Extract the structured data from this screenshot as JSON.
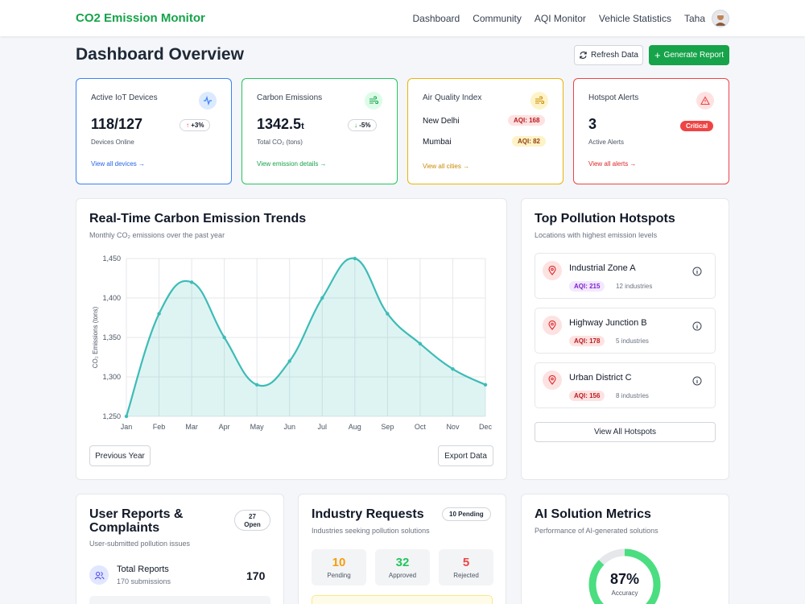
{
  "header": {
    "brand": "CO2 Emission Monitor",
    "nav": [
      "Dashboard",
      "Community",
      "AQI Monitor",
      "Vehicle Statistics"
    ],
    "user": "Taha"
  },
  "page": {
    "title": "Dashboard Overview",
    "refresh_label": "Refresh Data",
    "generate_label": "Generate Report"
  },
  "cards": {
    "devices": {
      "label": "Active IoT Devices",
      "value": "118/127",
      "change": "+3%",
      "sub": "Devices Online",
      "link": "View all devices →",
      "color": "#3b82f6"
    },
    "emissions": {
      "label": "Carbon Emissions",
      "value": "1342.5",
      "unit": "t",
      "change": "-5%",
      "sub": "Total CO₂ (tons)",
      "link": "View emission details →",
      "color": "#22c55e"
    },
    "aqi": {
      "label": "Air Quality Index",
      "cities": [
        {
          "name": "New Delhi",
          "aqi": "AQI: 168"
        },
        {
          "name": "Mumbai",
          "aqi": "AQI: 82"
        }
      ],
      "link": "View all cities →",
      "color": "#eab308"
    },
    "alerts": {
      "label": "Hotspot Alerts",
      "value": "3",
      "badge": "Critical",
      "sub": "Active Alerts",
      "link": "View all alerts →",
      "color": "#ef4444"
    }
  },
  "trend": {
    "title": "Real-Time Carbon Emission Trends",
    "subtitle": "Monthly CO₂ emissions over the past year",
    "prev_label": "Previous Year",
    "export_label": "Export Data"
  },
  "chart_data": {
    "type": "area",
    "categories": [
      "Jan",
      "Feb",
      "Mar",
      "Apr",
      "May",
      "Jun",
      "Jul",
      "Aug",
      "Sep",
      "Oct",
      "Nov",
      "Dec"
    ],
    "values": [
      1250,
      1380,
      1420,
      1350,
      1290,
      1320,
      1400,
      1450,
      1380,
      1342,
      1310,
      1290
    ],
    "ylabel": "CO₂ Emissions (tons)",
    "ylim": [
      1250,
      1450
    ],
    "yticks": [
      "1,250",
      "1,300",
      "1,350",
      "1,400",
      "1,450"
    ],
    "grid": true,
    "color": "#3dbcb6"
  },
  "hotspots": {
    "title": "Top Pollution Hotspots",
    "subtitle": "Locations with highest emission levels",
    "items": [
      {
        "name": "Industrial Zone A",
        "aqi": "AQI: 215",
        "industries": "12 industries"
      },
      {
        "name": "Highway Junction B",
        "aqi": "AQI: 178",
        "industries": "5 industries"
      },
      {
        "name": "Urban District C",
        "aqi": "AQI: 156",
        "industries": "8 industries"
      }
    ],
    "view_all": "View All Hotspots"
  },
  "reports": {
    "title_line1": "User Reports &",
    "title_line2": "Complaints",
    "badge_count": "27",
    "badge_label": "Open",
    "subtitle": "User-submitted pollution issues",
    "total_label": "Total Reports",
    "total_sub": "170 submissions",
    "total_value": "170"
  },
  "requests": {
    "title": "Industry Requests",
    "badge": "10 Pending",
    "subtitle": "Industries seeking pollution solutions",
    "stats": [
      {
        "value": "10",
        "label": "Pending",
        "color": "#f59e0b"
      },
      {
        "value": "32",
        "label": "Approved",
        "color": "#22c55e"
      },
      {
        "value": "5",
        "label": "Rejected",
        "color": "#ef4444"
      }
    ]
  },
  "ai": {
    "title": "AI Solution Metrics",
    "subtitle": "Performance of AI-generated solutions",
    "accuracy_value": "87%",
    "accuracy_label": "Accuracy",
    "accuracy_fraction": 0.87
  }
}
